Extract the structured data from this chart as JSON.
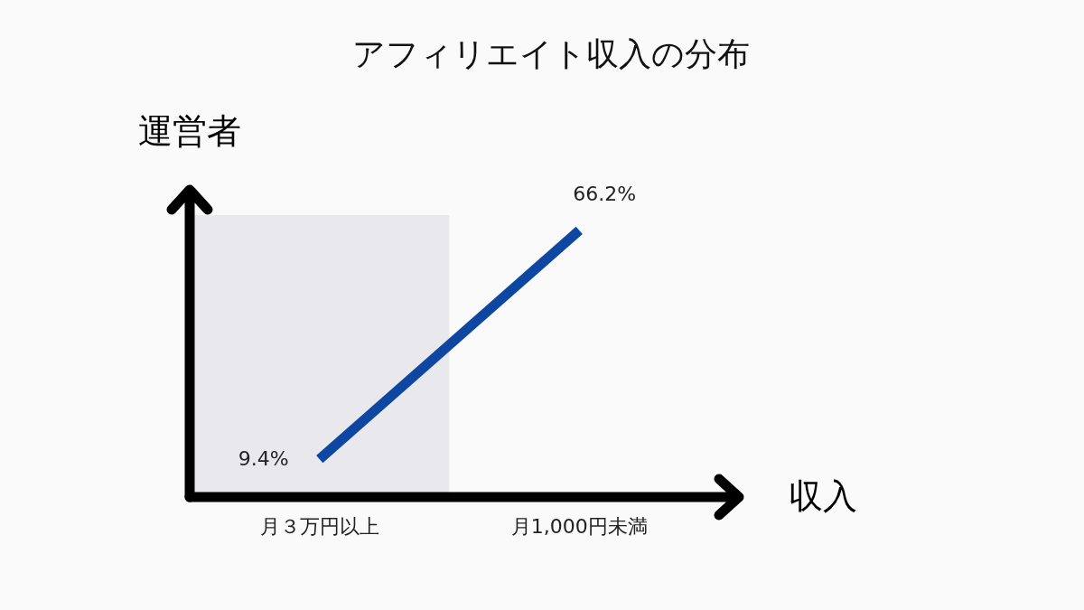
{
  "chart_data": {
    "type": "line",
    "title": "アフィリエイト収入の分布",
    "xlabel": "収入",
    "ylabel": "運営者",
    "categories": [
      "月３万円以上",
      "月1,000円未満"
    ],
    "series": [
      {
        "color": "#0d47a1",
        "values": [
          9.4,
          66.2
        ],
        "value_labels": [
          "9.4%",
          "66.2%"
        ]
      }
    ],
    "tick_labels": "x",
    "marker": "none",
    "bands": [
      {
        "axis": "x",
        "from": "月３万円以上",
        "to": "月３万円以上",
        "color": "#e9e9ed"
      }
    ]
  }
}
